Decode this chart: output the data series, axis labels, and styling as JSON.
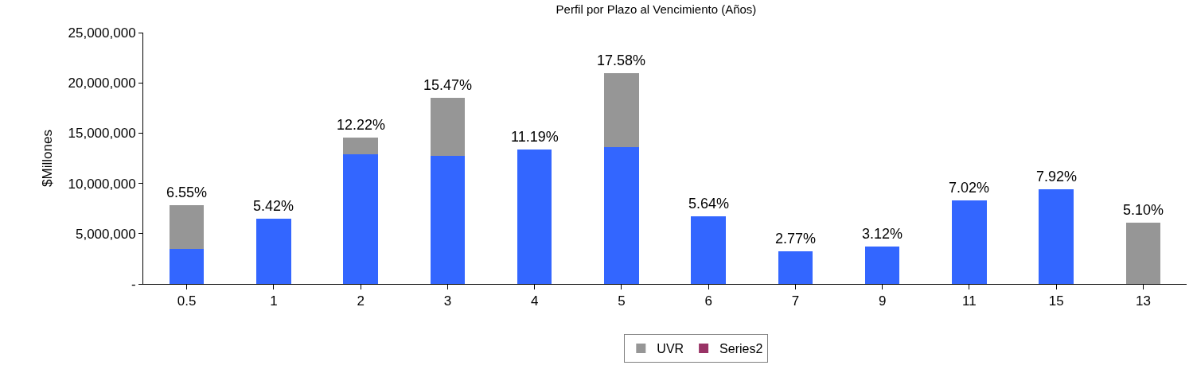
{
  "chart_data": {
    "type": "bar",
    "title": "Perfil por Plazo al Vencimiento (Años)",
    "ylabel": "$Millones",
    "categories": [
      "0.5",
      "1",
      "2",
      "3",
      "4",
      "5",
      "6",
      "7",
      "9",
      "11",
      "15",
      "13"
    ],
    "stacked": true,
    "series": [
      {
        "color": "#3366ff",
        "values": [
          3470000,
          6470000,
          12910000,
          12730000,
          13340000,
          13630000,
          6690000,
          3250000,
          3680000,
          8330000,
          9410000,
          null
        ]
      },
      {
        "name": "UVR",
        "color": "#969696",
        "values": [
          4330000,
          null,
          1680000,
          5760000,
          null,
          7360000,
          null,
          null,
          null,
          null,
          null,
          6080000
        ]
      },
      {
        "name": "Series2",
        "color": "#993366",
        "values": [
          null,
          null,
          null,
          null,
          null,
          null,
          null,
          null,
          null,
          null,
          null,
          null
        ]
      }
    ],
    "annotations": [
      {
        "text": "6.55%",
        "x": "0.5",
        "y": 7800000
      },
      {
        "text": "5.42%",
        "x": "1",
        "y": 6470000
      },
      {
        "text": "12.22%",
        "x": "2",
        "y": 14590000
      },
      {
        "text": "15.47%",
        "x": "3",
        "y": 18490000
      },
      {
        "text": "11.19%",
        "x": "4",
        "y": 13340000
      },
      {
        "text": "17.58%",
        "x": "5",
        "y": 20990000
      },
      {
        "text": "5.64%",
        "x": "6",
        "y": 6690000
      },
      {
        "text": "2.77%",
        "x": "7",
        "y": 3250000
      },
      {
        "text": "3.12%",
        "x": "9",
        "y": 3680000
      },
      {
        "text": "7.02%",
        "x": "11",
        "y": 8330000
      },
      {
        "text": "7.92%",
        "x": "15",
        "y": 9410000
      },
      {
        "text": "5.10%",
        "x": "13",
        "y": 6080000
      }
    ],
    "ylim": [
      0,
      25000000
    ],
    "yticks": [
      {
        "value": 0,
        "label": "-"
      },
      {
        "value": 5000000,
        "label": "5,000,000"
      },
      {
        "value": 10000000,
        "label": "10,000,000"
      },
      {
        "value": 15000000,
        "label": "15,000,000"
      },
      {
        "value": 20000000,
        "label": "20,000,000"
      },
      {
        "value": 25000000,
        "label": "25,000,000"
      }
    ],
    "legend": "bottom"
  }
}
